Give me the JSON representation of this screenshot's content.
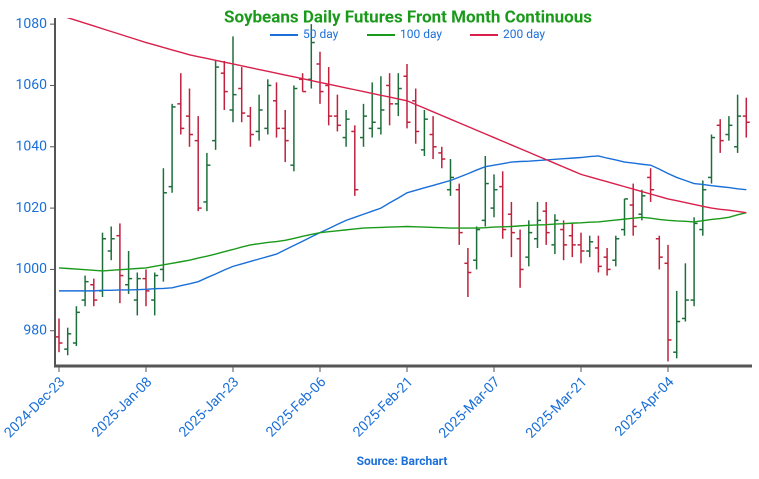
{
  "chart_data": {
    "type": "ohlc",
    "title": "Soybeans Daily Futures Front Month Continuous",
    "source": "Source: Barchart",
    "categories": [
      "2024-Dec-23",
      null,
      null,
      null,
      null,
      null,
      null,
      null,
      null,
      null,
      "2025-Jan-08",
      null,
      null,
      null,
      null,
      null,
      null,
      null,
      null,
      null,
      "2025-Jan-23",
      null,
      null,
      null,
      null,
      null,
      null,
      null,
      null,
      null,
      "2025-Feb-06",
      null,
      null,
      null,
      null,
      null,
      null,
      null,
      null,
      null,
      "2025-Feb-21",
      null,
      null,
      null,
      null,
      null,
      null,
      null,
      null,
      null,
      "2025-Mar-07",
      null,
      null,
      null,
      null,
      null,
      null,
      null,
      null,
      null,
      "2025-Mar-21",
      null,
      null,
      null,
      null,
      null,
      null,
      null,
      null,
      null,
      "2025-Apr-04",
      null,
      null,
      null,
      null,
      null,
      null,
      null,
      null,
      null
    ],
    "open": [
      978,
      974,
      976,
      990,
      995,
      993,
      1006,
      1011,
      995,
      990,
      997,
      990,
      1000,
      1027,
      1054,
      1050,
      1042,
      1022,
      1042,
      1064,
      1052,
      1059,
      1050,
      1045,
      1046,
      1055,
      1046,
      1034,
      1062,
      1062,
      1067,
      1060,
      1050,
      1043,
      1045,
      1043,
      1046,
      1046,
      1060,
      1054,
      1063,
      1055,
      1039,
      1044,
      1038,
      1026,
      1026,
      1002,
      1003,
      1016,
      1020,
      1027,
      1018,
      1010,
      1004,
      1010,
      1019,
      1008,
      1013,
      1011,
      1008,
      1006,
      1007,
      1004,
      1003,
      1013,
      1021,
      1018,
      1030,
      1010,
      1002,
      973,
      984,
      990,
      1013,
      1030,
      1047,
      1044,
      1040,
      1050
    ],
    "high": [
      984,
      981,
      988,
      998,
      997,
      1012,
      1014,
      1015,
      1006,
      999,
      1000,
      999,
      1033,
      1054,
      1064,
      1059,
      1050,
      1038,
      1068,
      1068,
      1076,
      1066,
      1053,
      1057,
      1062,
      1061,
      1052,
      1060,
      1064,
      1080,
      1071,
      1066,
      1057,
      1052,
      1047,
      1054,
      1061,
      1063,
      1064,
      1064,
      1067,
      1059,
      1052,
      1050,
      1040,
      1036,
      1028,
      1007,
      1014,
      1037,
      1031,
      1032,
      1022,
      1013,
      1016,
      1022,
      1022,
      1018,
      1016,
      1015,
      1012,
      1011,
      1011,
      1007,
      1011,
      1023,
      1028,
      1026,
      1033,
      1011,
      1008,
      993,
      1002,
      1017,
      1029,
      1044,
      1049,
      1050,
      1057,
      1056
    ],
    "low": [
      973,
      972,
      975,
      988,
      988,
      991,
      1003,
      989,
      992,
      985,
      988,
      985,
      996,
      1025,
      1044,
      1040,
      1019,
      1019,
      1039,
      1052,
      1048,
      1048,
      1040,
      1042,
      1044,
      1043,
      1035,
      1032,
      1058,
      1059,
      1054,
      1047,
      1045,
      1040,
      1024,
      1040,
      1043,
      1044,
      1047,
      1050,
      1046,
      1041,
      1037,
      1036,
      1033,
      1024,
      1008,
      991,
      1000,
      1014,
      1017,
      1010,
      1004,
      994,
      1001,
      1007,
      1008,
      1005,
      1003,
      1004,
      1002,
      1004,
      999,
      998,
      1001,
      1011,
      1011,
      1016,
      1022,
      1000,
      970,
      971,
      983,
      988,
      1011,
      1028,
      1038,
      1042,
      1038,
      1043
    ],
    "close": [
      976,
      979,
      986,
      996,
      990,
      1010,
      1010,
      998,
      997,
      997,
      993,
      998,
      1025,
      1053,
      1046,
      1044,
      1020,
      1034,
      1066,
      1058,
      1057,
      1051,
      1044,
      1052,
      1060,
      1046,
      1042,
      1059,
      1058,
      1074,
      1058,
      1050,
      1047,
      1049,
      1026,
      1050,
      1048,
      1052,
      1054,
      1059,
      1048,
      1045,
      1049,
      1040,
      1036,
      1030,
      1012,
      999,
      1013,
      1028,
      1026,
      1013,
      1012,
      1000,
      1012,
      1016,
      1012,
      1016,
      1008,
      1008,
      1006,
      1009,
      1001,
      1000,
      1010,
      1023,
      1014,
      1024,
      1026,
      1004,
      977,
      983,
      990,
      1015,
      1026,
      1043,
      1042,
      1047,
      1050,
      1048
    ],
    "up_color": "#1e6e3c",
    "down_color": "#c0213c",
    "series": [
      {
        "name": "50 day",
        "color": "#1a6fd8",
        "values": [
          993,
          993,
          993,
          993,
          993,
          993.2,
          993.2,
          993.3,
          993.3,
          993.4,
          993.5,
          993.7,
          993.8,
          994,
          994.7,
          995.3,
          996,
          997.3,
          998.5,
          999.8,
          1001,
          1001.8,
          1002.6,
          1003.4,
          1004.2,
          1005,
          1006.4,
          1007.8,
          1009.2,
          1010.6,
          1012,
          1013.3,
          1014.7,
          1016,
          1017,
          1018,
          1019,
          1020,
          1021.7,
          1023.3,
          1025,
          1025.8,
          1026.6,
          1027.4,
          1028.2,
          1029,
          1030.1,
          1031.2,
          1032.4,
          1033.5,
          1034,
          1034.5,
          1035,
          1035.2,
          1035.3,
          1035.5,
          1035.7,
          1035.9,
          1036.1,
          1036.3,
          1036.5,
          1036.8,
          1037,
          1036.3,
          1035.7,
          1035,
          1034.7,
          1034.3,
          1034,
          1032.7,
          1031.3,
          1030,
          1029,
          1028,
          1027.7,
          1027.3,
          1027,
          1026.7,
          1026.3,
          1026
        ]
      },
      {
        "name": "100 day",
        "color": "#1a9a1a",
        "values": [
          1000.5,
          1000.3,
          1000.1,
          999.9,
          999.7,
          999.5,
          999.7,
          999.9,
          1000.1,
          1000.3,
          1000.5,
          1001,
          1001.5,
          1002,
          1002.5,
          1003,
          1003.7,
          1004.3,
          1005,
          1005.8,
          1006.5,
          1007.3,
          1008,
          1008.4,
          1008.8,
          1009.1,
          1009.5,
          1010.1,
          1010.8,
          1011.4,
          1012,
          1012.3,
          1012.6,
          1012.9,
          1013.2,
          1013.5,
          1013.6,
          1013.7,
          1013.8,
          1013.9,
          1014,
          1013.9,
          1013.8,
          1013.7,
          1013.6,
          1013.5,
          1013.5,
          1013.5,
          1013.5,
          1013.6,
          1013.8,
          1013.9,
          1014,
          1014.2,
          1014.4,
          1014.5,
          1014.6,
          1014.8,
          1014.9,
          1015.1,
          1015.2,
          1015.4,
          1015.5,
          1015.8,
          1016.1,
          1016.4,
          1016.7,
          1017,
          1016.7,
          1016.3,
          1016,
          1015.8,
          1015.7,
          1015.5,
          1015.9,
          1016.3,
          1016.6,
          1017,
          1017.8,
          1018.5
        ]
      },
      {
        "name": "200 day",
        "color": "#d8204a",
        "values": [
          1083,
          1082.1,
          1081.2,
          1080.3,
          1079.4,
          1078.5,
          1077.6,
          1076.7,
          1075.8,
          1074.9,
          1074,
          1073.2,
          1072.4,
          1071.6,
          1070.8,
          1070,
          1069.4,
          1068.8,
          1068.2,
          1067.6,
          1067,
          1066.4,
          1065.8,
          1065.2,
          1064.6,
          1064,
          1063.4,
          1062.8,
          1062.2,
          1061.6,
          1061,
          1060.4,
          1059.8,
          1059.2,
          1058.6,
          1058,
          1057.4,
          1056.8,
          1056.2,
          1055.6,
          1055,
          1053.8,
          1052.6,
          1051.4,
          1050.2,
          1049,
          1047.8,
          1046.6,
          1045.4,
          1044.2,
          1043,
          1041.8,
          1040.6,
          1039.4,
          1038.2,
          1037,
          1035.8,
          1034.6,
          1033.4,
          1032.2,
          1031,
          1030.2,
          1029.4,
          1028.6,
          1027.8,
          1027,
          1026.2,
          1025.4,
          1024.6,
          1023.8,
          1023,
          1022.4,
          1021.8,
          1021.2,
          1020.6,
          1020,
          1019.6,
          1019.3,
          1018.9,
          1018.5
        ]
      }
    ],
    "ylim": [
      968.5,
      1082
    ],
    "yticks": [
      980,
      1000,
      1020,
      1040,
      1060,
      1080
    ]
  }
}
